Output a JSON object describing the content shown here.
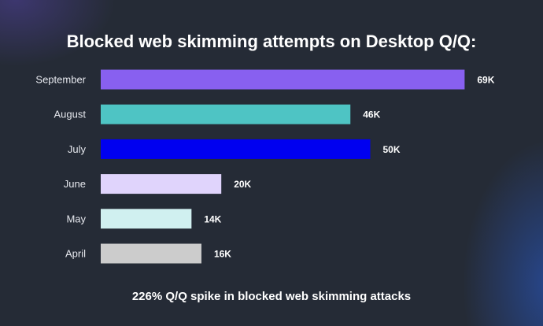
{
  "chart_data": {
    "type": "bar",
    "orientation": "horizontal",
    "title": "Blocked web skimming attempts on Desktop Q/Q:",
    "footer": "226% Q/Q spike in blocked web skimming attacks",
    "categories": [
      "September",
      "August",
      "July",
      "June",
      "May",
      "April"
    ],
    "values": [
      69,
      46,
      50,
      20,
      14,
      16
    ],
    "labels": [
      "69K",
      "46K",
      "50K",
      "20K",
      "14K",
      "16K"
    ],
    "colors": [
      "#8860f0",
      "#4ec4c4",
      "#0000f0",
      "#e0d4fc",
      "#d0f0f0",
      "#cccccc"
    ],
    "unit": "K",
    "grid": false,
    "legend": "none"
  }
}
